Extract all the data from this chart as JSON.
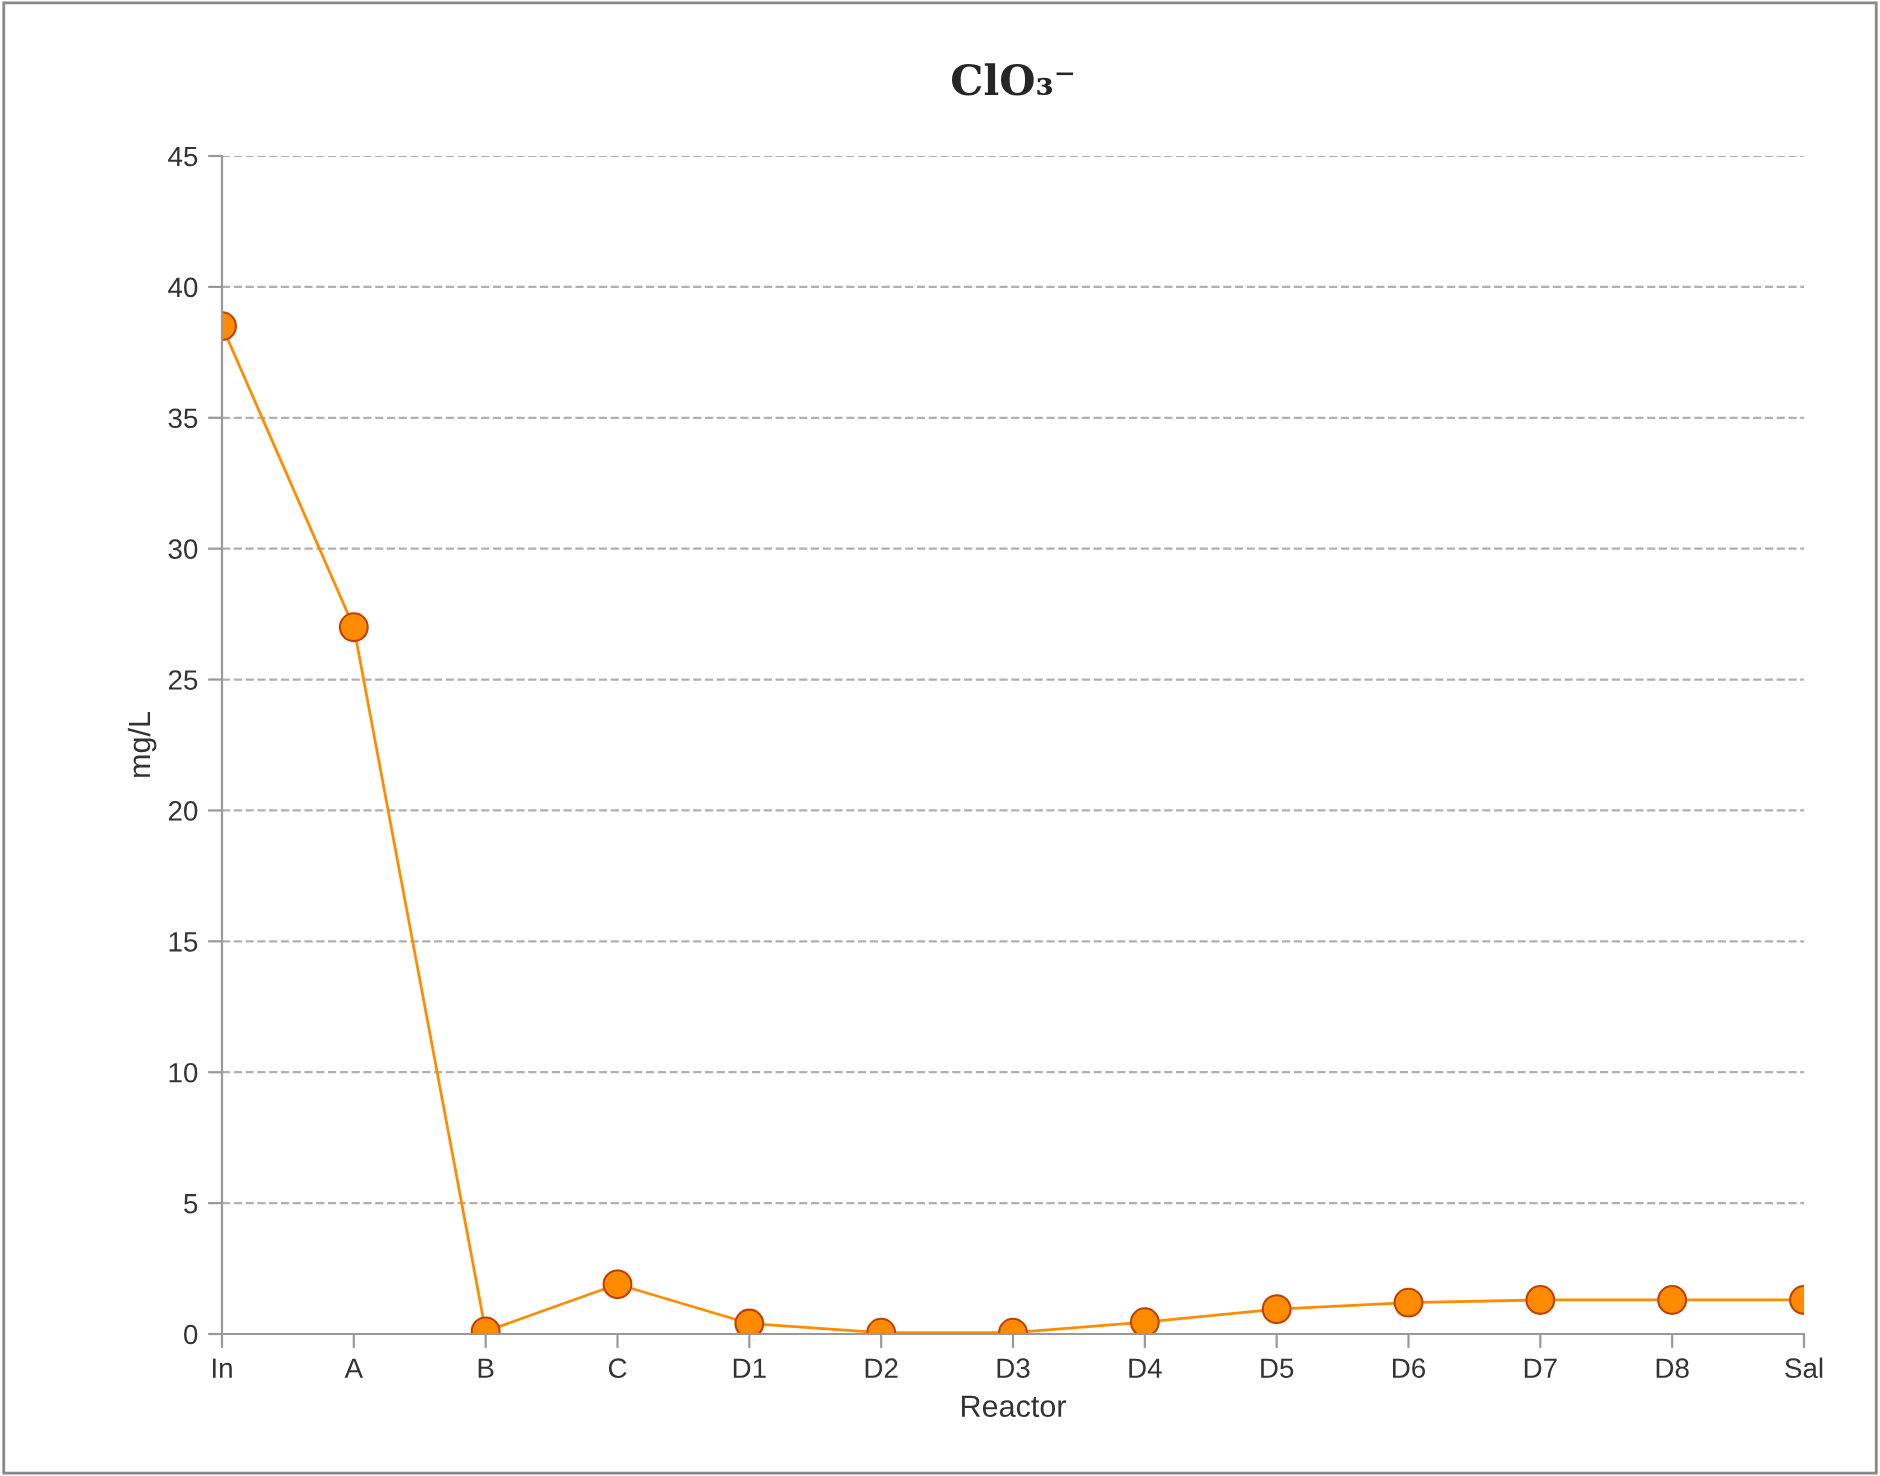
{
  "chart_data": {
    "type": "line",
    "title": "ClO₃⁻",
    "xlabel": "Reactor",
    "ylabel": "mg/L",
    "categories": [
      "In",
      "A",
      "B",
      "C",
      "D1",
      "D2",
      "D3",
      "D4",
      "D5",
      "D6",
      "D7",
      "D8",
      "Sal"
    ],
    "series": [
      {
        "color": "#ff8c00",
        "values": [
          38.5,
          27,
          0.1,
          1.9,
          0.4,
          0.05,
          0.05,
          0.45,
          0.95,
          1.2,
          1.3,
          1.3,
          1.3
        ]
      }
    ],
    "ylim": [
      0,
      45
    ],
    "yticks": [
      0,
      5,
      10,
      15,
      20,
      25,
      30,
      35,
      40,
      45
    ],
    "grid": "y",
    "marker": "circle",
    "line_style": "solid",
    "legend": false
  }
}
